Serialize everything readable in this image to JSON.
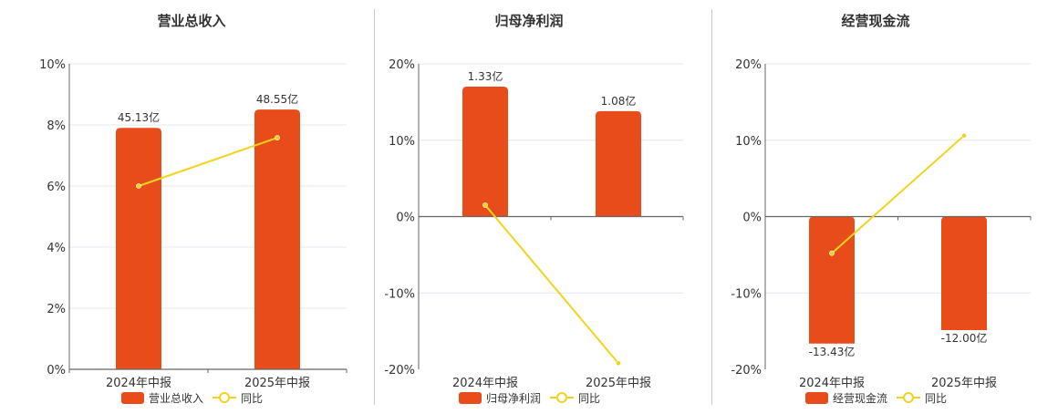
{
  "colors": {
    "bar": "#e84c1b",
    "line": "#f2d41b",
    "axis": "#666666",
    "grid": "#e4e8f0",
    "text": "#333333",
    "separator": "#c9c9c9"
  },
  "chart_data": [
    {
      "type": "bar",
      "title": "营业总收入",
      "categories": [
        "2024年中报",
        "2025年中报"
      ],
      "series": [
        {
          "name": "营业总收入",
          "type": "bar",
          "axis": "amount",
          "values": [
            45.13,
            48.55
          ],
          "labels": [
            "45.13亿",
            "48.55亿"
          ]
        },
        {
          "name": "同比",
          "type": "line",
          "axis": "percent",
          "values": [
            6.0,
            7.58
          ]
        }
      ],
      "ylim": [
        0,
        10
      ],
      "yticks": [
        0,
        2,
        4,
        6,
        8,
        10
      ],
      "ytick_labels": [
        "0%",
        "2%",
        "4%",
        "6%",
        "8%",
        "10%"
      ],
      "amount_range": [
        0,
        57.1
      ],
      "grid": true,
      "legend": "bottom-center"
    },
    {
      "type": "bar",
      "title": "归母净利润",
      "categories": [
        "2024年中报",
        "2025年中报"
      ],
      "series": [
        {
          "name": "归母净利润",
          "type": "bar",
          "axis": "amount",
          "values": [
            1.33,
            1.08
          ],
          "labels": [
            "1.33亿",
            "1.08亿"
          ]
        },
        {
          "name": "同比",
          "type": "line",
          "axis": "percent",
          "values": [
            1.5,
            -19.2
          ]
        }
      ],
      "ylim": [
        -20,
        20
      ],
      "yticks": [
        -20,
        -10,
        0,
        10,
        20
      ],
      "ytick_labels": [
        "-20%",
        "-10%",
        "0%",
        "10%",
        "20%"
      ],
      "amount_range": [
        -1.564,
        1.564
      ],
      "grid": true,
      "legend": "bottom-center"
    },
    {
      "type": "bar",
      "title": "经营现金流",
      "categories": [
        "2024年中报",
        "2025年中报"
      ],
      "series": [
        {
          "name": "经营现金流",
          "type": "bar",
          "axis": "amount",
          "values": [
            -13.43,
            -12.0
          ],
          "labels": [
            "-13.43亿",
            "-12.00亿"
          ]
        },
        {
          "name": "同比",
          "type": "line",
          "axis": "percent",
          "values": [
            -4.8,
            10.6
          ]
        }
      ],
      "ylim": [
        -20,
        20
      ],
      "yticks": [
        -20,
        -10,
        0,
        10,
        20
      ],
      "ytick_labels": [
        "-20%",
        "-10%",
        "0%",
        "10%",
        "20%"
      ],
      "amount_range": [
        -16.15,
        16.15
      ],
      "grid": true,
      "legend": "bottom-center"
    }
  ]
}
